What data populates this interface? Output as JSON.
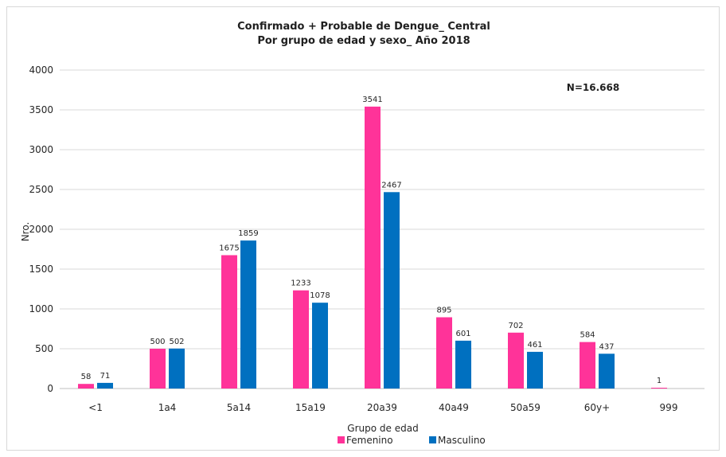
{
  "chart_data": {
    "type": "bar",
    "title": "Confirmado + Probable de Dengue_ Central",
    "subtitle": "Por grupo de edad y sexo_ Año 2018",
    "xlabel": "Grupo de edad",
    "ylabel": "Nro.",
    "ylim": [
      0,
      4000
    ],
    "yticks": [
      "0",
      "500",
      "1000",
      "1500",
      "2000",
      "2500",
      "3000",
      "3500",
      "4000"
    ],
    "ytick_values": [
      0,
      500,
      1000,
      1500,
      2000,
      2500,
      3000,
      3500,
      4000
    ],
    "grid": true,
    "legend_position": "bottom",
    "annotation": "N=16.668",
    "categories": [
      "<1",
      "1a4",
      "5a14",
      "15a19",
      "20a39",
      "40a49",
      "50a59",
      "60y+",
      "999"
    ],
    "series": [
      {
        "name": "Femenino",
        "color": "#ff3399",
        "values": [
          58,
          500,
          1675,
          1233,
          3541,
          895,
          702,
          584,
          1
        ],
        "labels": [
          "58",
          "500",
          "1675",
          "1233",
          "3541",
          "895",
          "702",
          "584",
          "1"
        ]
      },
      {
        "name": "Masculino",
        "color": "#0070c0",
        "values": [
          71,
          502,
          1859,
          1078,
          2467,
          601,
          461,
          437,
          null
        ],
        "labels": [
          "71",
          "502",
          "1859",
          "1078",
          "2467",
          "601",
          "461",
          "437",
          ""
        ]
      }
    ]
  }
}
